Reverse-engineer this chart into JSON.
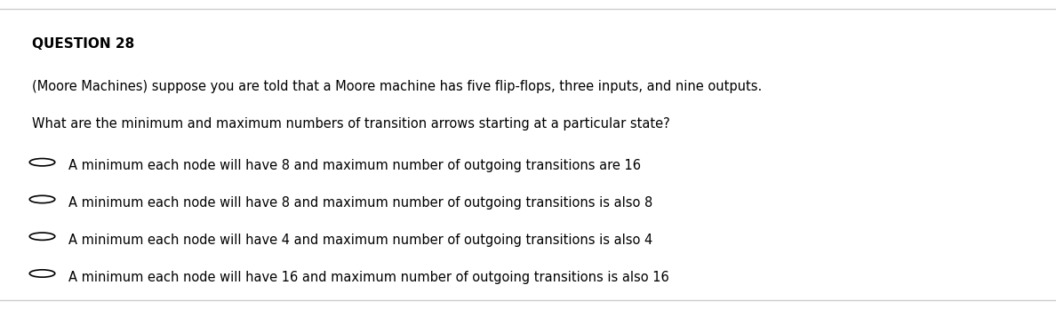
{
  "title": "QUESTION 28",
  "question_line1": "(Moore Machines) suppose you are told that a Moore machine has five flip-flops, three inputs, and nine outputs.",
  "question_line2": "What are the minimum and maximum numbers of transition arrows starting at a particular state?",
  "options": [
    "A minimum each node will have 8 and maximum number of outgoing transitions are 16",
    "A minimum each node will have 8 and maximum number of outgoing transitions is also 8",
    "A minimum each node will have 4 and maximum number of outgoing transitions is also 4",
    "A minimum each node will have 16 and maximum number of outgoing transitions is also 16"
  ],
  "bg_color": "#ffffff",
  "text_color": "#000000",
  "title_fontsize": 11,
  "body_fontsize": 10.5,
  "option_fontsize": 10.5,
  "top_line_color": "#cccccc",
  "bottom_line_color": "#cccccc"
}
